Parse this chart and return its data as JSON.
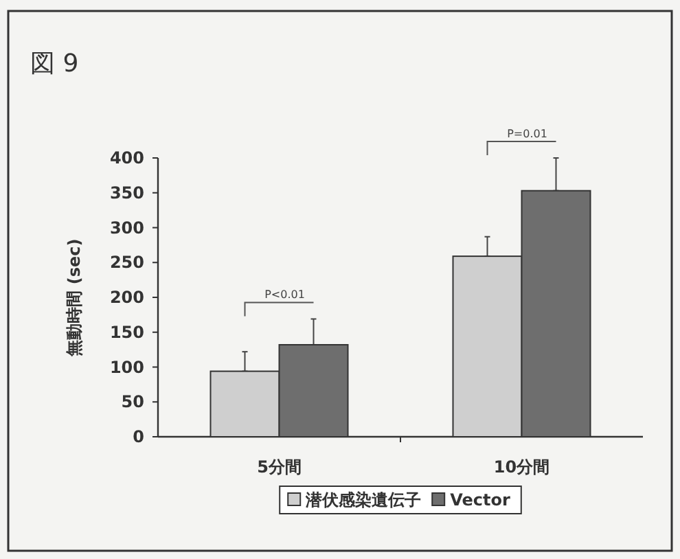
{
  "chart_data": {
    "type": "bar",
    "title": "図 9",
    "ylabel": "無動時間 (sec)",
    "categories": [
      "5分間",
      "10分間"
    ],
    "series": [
      {
        "name": "潜伏感染遺伝子",
        "color": "#cfcfcf",
        "values": [
          94,
          259
        ],
        "errors": [
          [
            94,
            122
          ],
          [
            259,
            287
          ]
        ]
      },
      {
        "name": "Vector",
        "color": "#6e6e6e",
        "values": [
          132,
          353
        ],
        "errors": [
          [
            132,
            169
          ],
          [
            353,
            400
          ]
        ]
      }
    ],
    "ylim": [
      0,
      400
    ],
    "yticks": [
      0,
      50,
      100,
      150,
      200,
      250,
      300,
      350,
      400
    ],
    "legend": "bottom",
    "grid": false,
    "annotations": [
      "P<0.01",
      "P=0.01"
    ]
  }
}
